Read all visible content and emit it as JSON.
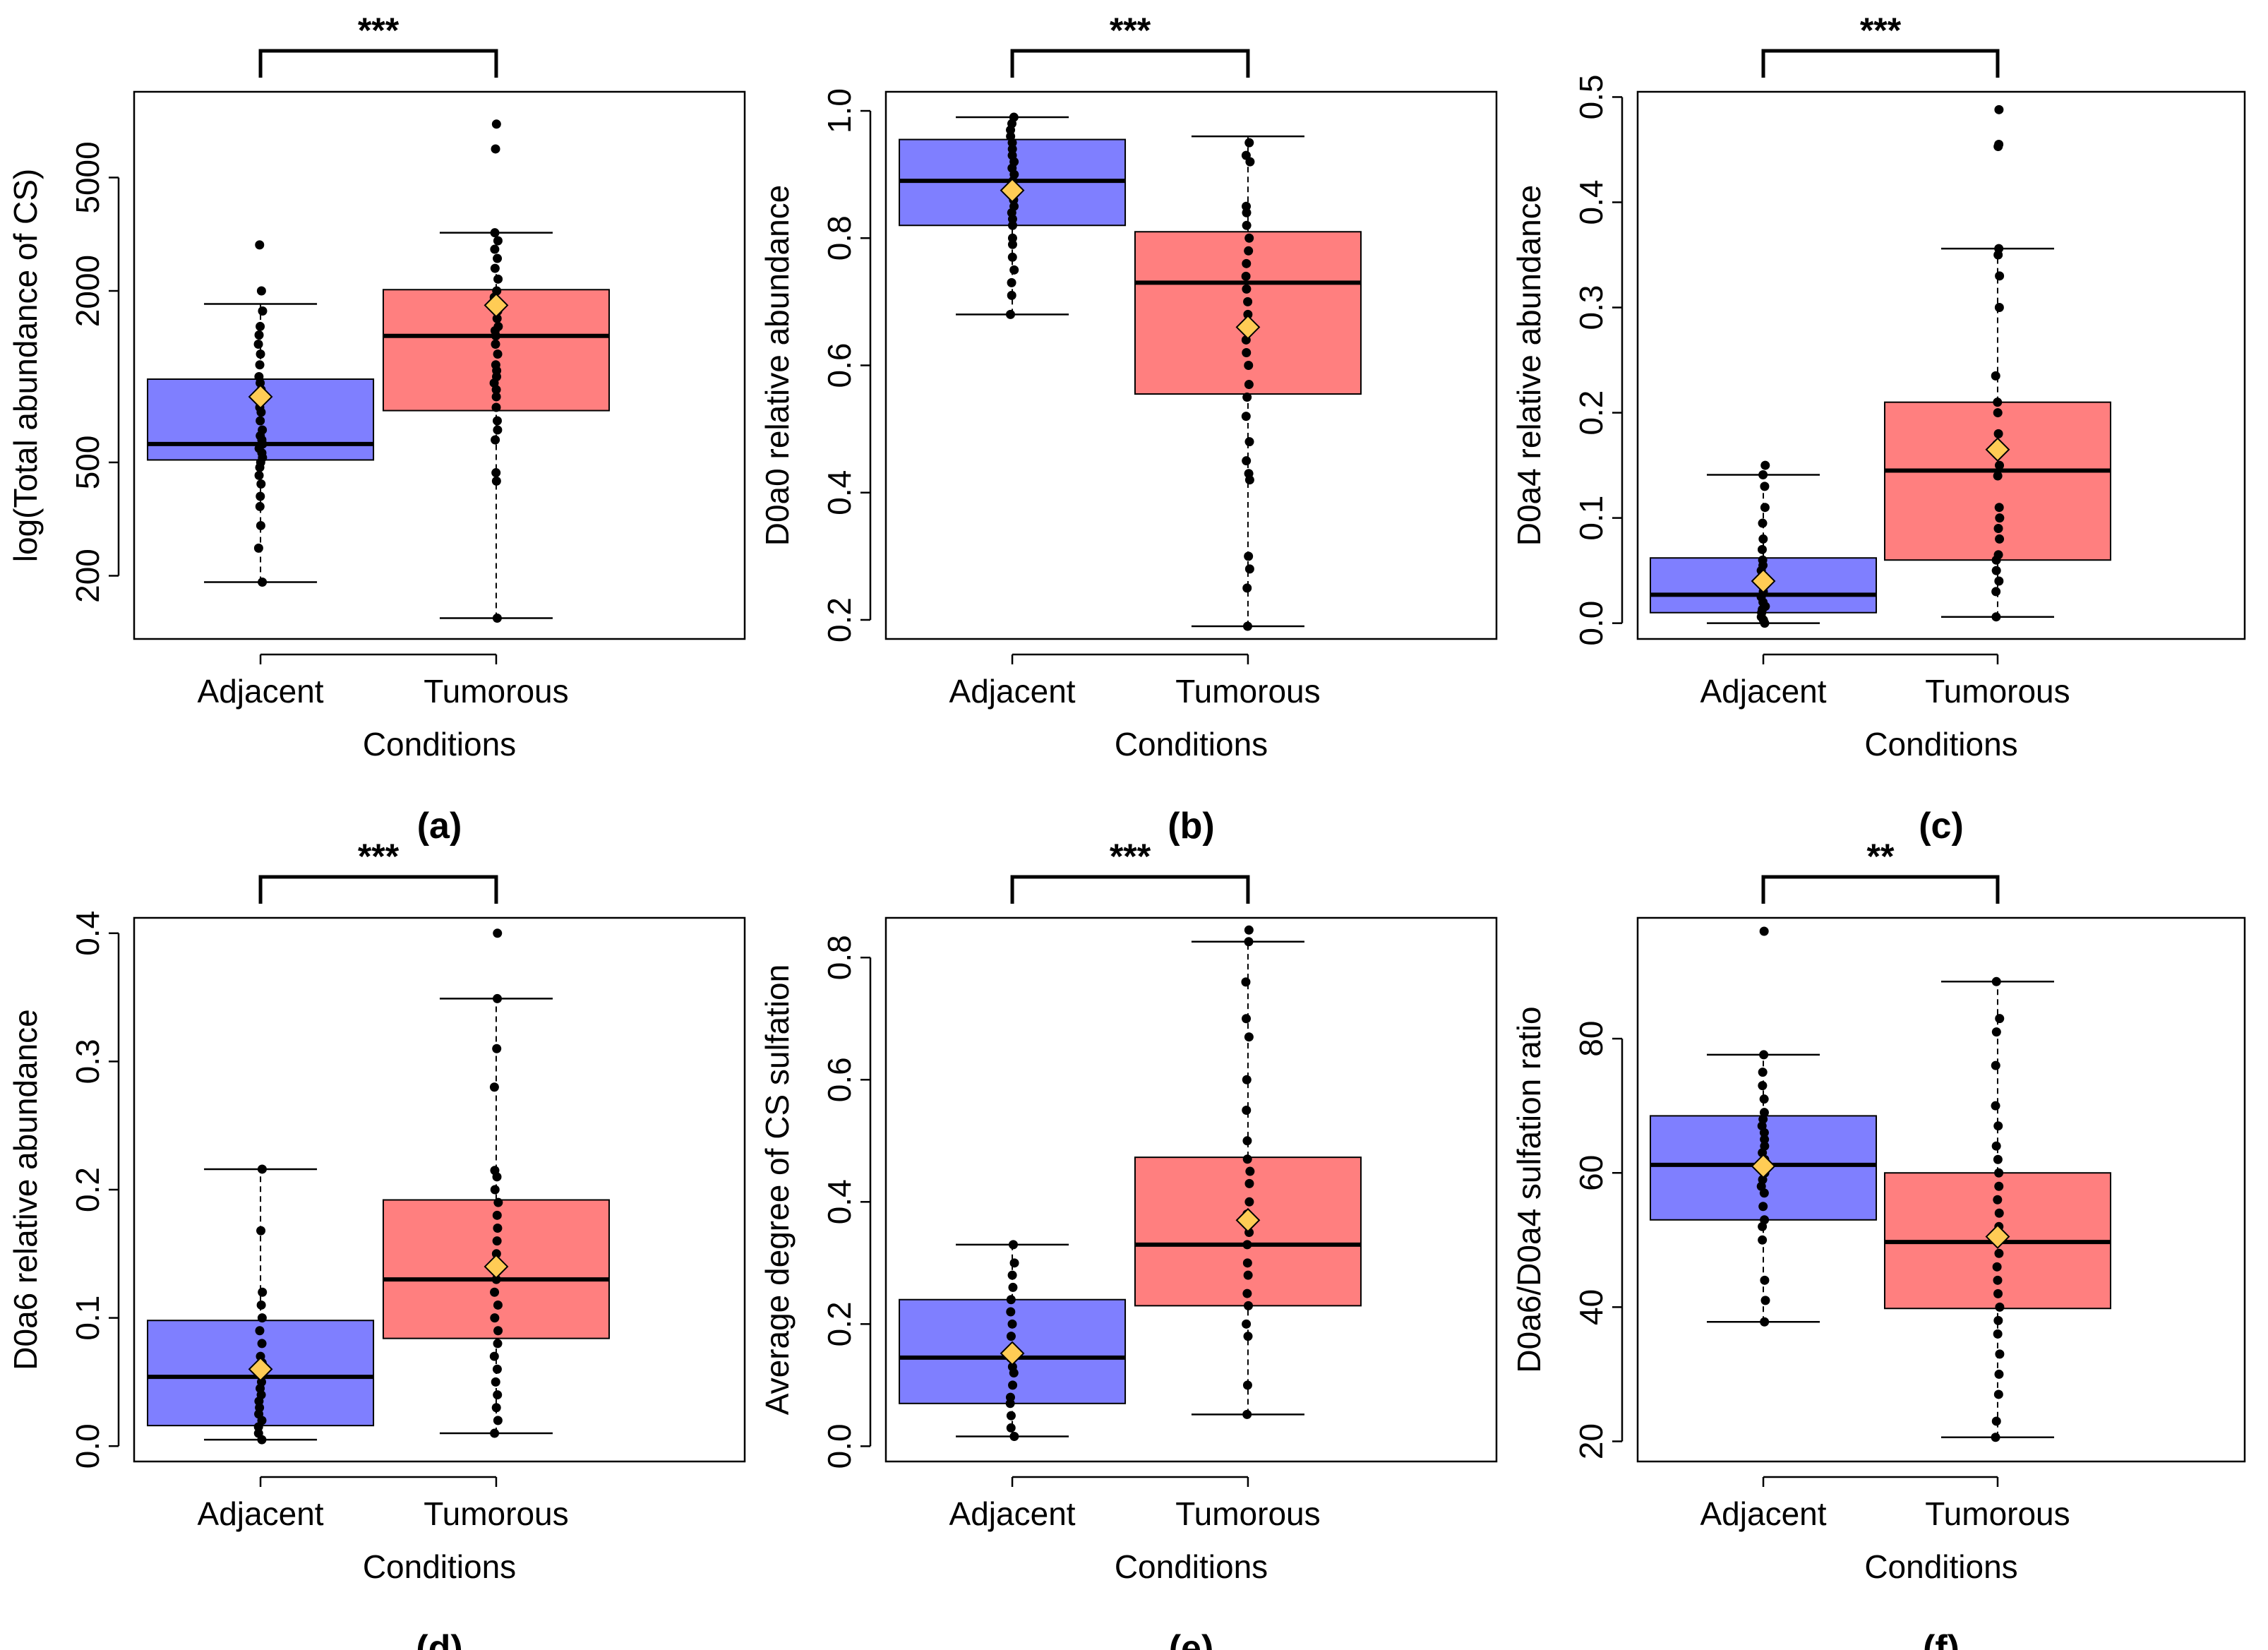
{
  "colors": {
    "adjacent": "#7f7fff",
    "tumorous": "#ff7f7f",
    "mean_marker": "#ffcc55",
    "points": "#000000"
  },
  "chart_data": [
    {
      "type": "box",
      "panel": "(a)",
      "xlabel": "Conditions",
      "ylabel": "log(Total abundance of CS)",
      "categories": [
        "Adjacent",
        "Tumorous"
      ],
      "significance": "***",
      "log_scale": true,
      "ylim": [
        120,
        10000
      ],
      "yticks": [
        200,
        500,
        2000,
        5000
      ],
      "boxes": [
        {
          "q1": 510,
          "median": 580,
          "q3": 980,
          "whisker_low": 190,
          "whisker_high": 1800,
          "mean": 850,
          "points": [
            190,
            250,
            300,
            350,
            380,
            420,
            450,
            480,
            500,
            520,
            540,
            560,
            580,
            600,
            620,
            650,
            700,
            750,
            780,
            820,
            860,
            900,
            950,
            1000,
            1100,
            1200,
            1300,
            1400,
            1500,
            1700,
            2000,
            2900
          ]
        },
        {
          "q1": 760,
          "median": 1390,
          "q3": 2020,
          "whisker_low": 142,
          "whisker_high": 3200,
          "mean": 1780,
          "points": [
            142,
            430,
            460,
            600,
            650,
            700,
            780,
            850,
            900,
            950,
            1000,
            1050,
            1100,
            1200,
            1300,
            1390,
            1450,
            1500,
            1600,
            1700,
            1800,
            1900,
            2000,
            2200,
            2400,
            2600,
            2800,
            3000,
            3200,
            6300,
            7700
          ]
        }
      ]
    },
    {
      "type": "box",
      "panel": "(b)",
      "xlabel": "Conditions",
      "ylabel": "D0a0 relative abundance",
      "categories": [
        "Adjacent",
        "Tumorous"
      ],
      "significance": "***",
      "log_scale": false,
      "ylim": [
        0.17,
        1.03
      ],
      "yticks": [
        0.2,
        0.4,
        0.6,
        0.8,
        1.0
      ],
      "ytick_labels": [
        "0.2",
        "0.4",
        "0.6",
        "0.8",
        "1.0"
      ],
      "boxes": [
        {
          "q1": 0.82,
          "median": 0.89,
          "q3": 0.955,
          "whisker_low": 0.68,
          "whisker_high": 0.99,
          "mean": 0.875,
          "points": [
            0.68,
            0.71,
            0.73,
            0.75,
            0.77,
            0.79,
            0.8,
            0.82,
            0.83,
            0.84,
            0.85,
            0.86,
            0.87,
            0.88,
            0.89,
            0.9,
            0.91,
            0.92,
            0.93,
            0.94,
            0.95,
            0.96,
            0.97,
            0.98,
            0.99
          ]
        },
        {
          "q1": 0.555,
          "median": 0.73,
          "q3": 0.81,
          "whisker_low": 0.19,
          "whisker_high": 0.96,
          "mean": 0.66,
          "points": [
            0.19,
            0.25,
            0.28,
            0.3,
            0.42,
            0.43,
            0.45,
            0.48,
            0.52,
            0.55,
            0.57,
            0.6,
            0.62,
            0.64,
            0.66,
            0.68,
            0.7,
            0.72,
            0.74,
            0.76,
            0.78,
            0.8,
            0.82,
            0.84,
            0.85,
            0.92,
            0.93,
            0.95
          ]
        }
      ]
    },
    {
      "type": "box",
      "panel": "(c)",
      "xlabel": "Conditions",
      "ylabel": "D0a4 relative abundance",
      "categories": [
        "Adjacent",
        "Tumorous"
      ],
      "significance": "***",
      "log_scale": false,
      "ylim": [
        -0.015,
        0.505
      ],
      "yticks": [
        0.0,
        0.1,
        0.2,
        0.3,
        0.4,
        0.5
      ],
      "ytick_labels": [
        "0.0",
        "0.1",
        "0.2",
        "0.3",
        "0.4",
        "0.5"
      ],
      "boxes": [
        {
          "q1": 0.01,
          "median": 0.027,
          "q3": 0.062,
          "whisker_low": 0.0,
          "whisker_high": 0.141,
          "mean": 0.04,
          "points": [
            0.0,
            0.003,
            0.006,
            0.01,
            0.013,
            0.016,
            0.02,
            0.025,
            0.03,
            0.035,
            0.04,
            0.045,
            0.05,
            0.055,
            0.06,
            0.07,
            0.08,
            0.095,
            0.11,
            0.13,
            0.141,
            0.15
          ]
        },
        {
          "q1": 0.06,
          "median": 0.145,
          "q3": 0.21,
          "whisker_low": 0.006,
          "whisker_high": 0.356,
          "mean": 0.165,
          "points": [
            0.006,
            0.03,
            0.04,
            0.05,
            0.06,
            0.065,
            0.08,
            0.09,
            0.1,
            0.11,
            0.14,
            0.15,
            0.16,
            0.17,
            0.18,
            0.2,
            0.21,
            0.235,
            0.3,
            0.33,
            0.35,
            0.356,
            0.453,
            0.455,
            0.488
          ]
        }
      ]
    },
    {
      "type": "box",
      "panel": "(d)",
      "xlabel": "Conditions",
      "ylabel": "D0a6 relative abundance",
      "categories": [
        "Adjacent",
        "Tumorous"
      ],
      "significance": "***",
      "log_scale": false,
      "ylim": [
        -0.012,
        0.412
      ],
      "yticks": [
        0.0,
        0.1,
        0.2,
        0.3,
        0.4
      ],
      "ytick_labels": [
        "0.0",
        "0.1",
        "0.2",
        "0.3",
        "0.4"
      ],
      "boxes": [
        {
          "q1": 0.016,
          "median": 0.054,
          "q3": 0.098,
          "whisker_low": 0.005,
          "whisker_high": 0.216,
          "mean": 0.06,
          "points": [
            0.005,
            0.01,
            0.015,
            0.02,
            0.025,
            0.03,
            0.035,
            0.04,
            0.045,
            0.05,
            0.055,
            0.06,
            0.065,
            0.07,
            0.08,
            0.09,
            0.1,
            0.11,
            0.12,
            0.168,
            0.216
          ]
        },
        {
          "q1": 0.084,
          "median": 0.13,
          "q3": 0.192,
          "whisker_low": 0.01,
          "whisker_high": 0.349,
          "mean": 0.14,
          "points": [
            0.01,
            0.02,
            0.03,
            0.04,
            0.05,
            0.06,
            0.07,
            0.08,
            0.09,
            0.1,
            0.11,
            0.12,
            0.13,
            0.14,
            0.15,
            0.16,
            0.17,
            0.18,
            0.19,
            0.2,
            0.21,
            0.215,
            0.28,
            0.31,
            0.349,
            0.4
          ]
        }
      ]
    },
    {
      "type": "box",
      "panel": "(e)",
      "xlabel": "Conditions",
      "ylabel": "Average degree of CS sulfation",
      "categories": [
        "Adjacent",
        "Tumorous"
      ],
      "significance": "***",
      "log_scale": false,
      "ylim": [
        -0.025,
        0.865
      ],
      "yticks": [
        0.0,
        0.2,
        0.4,
        0.6,
        0.8
      ],
      "ytick_labels": [
        "0.0",
        "0.2",
        "0.4",
        "0.6",
        "0.8"
      ],
      "boxes": [
        {
          "q1": 0.07,
          "median": 0.145,
          "q3": 0.24,
          "whisker_low": 0.016,
          "whisker_high": 0.33,
          "mean": 0.152,
          "points": [
            0.016,
            0.03,
            0.05,
            0.07,
            0.08,
            0.1,
            0.12,
            0.13,
            0.145,
            0.16,
            0.18,
            0.2,
            0.22,
            0.24,
            0.26,
            0.28,
            0.3,
            0.33
          ]
        },
        {
          "q1": 0.23,
          "median": 0.33,
          "q3": 0.473,
          "whisker_low": 0.052,
          "whisker_high": 0.826,
          "mean": 0.37,
          "points": [
            0.052,
            0.1,
            0.18,
            0.2,
            0.23,
            0.25,
            0.28,
            0.3,
            0.33,
            0.35,
            0.38,
            0.4,
            0.43,
            0.45,
            0.47,
            0.5,
            0.55,
            0.6,
            0.67,
            0.7,
            0.76,
            0.826,
            0.845
          ]
        }
      ]
    },
    {
      "type": "box",
      "panel": "(f)",
      "xlabel": "Conditions",
      "ylabel": "D0a6/D0a4 sulfation ratio",
      "categories": [
        "Adjacent",
        "Tumorous"
      ],
      "significance": "**",
      "log_scale": false,
      "ylim": [
        17,
        98
      ],
      "yticks": [
        20,
        40,
        60,
        80
      ],
      "ytick_labels": [
        "20",
        "40",
        "60",
        "80"
      ],
      "boxes": [
        {
          "q1": 53,
          "median": 61.2,
          "q3": 68.5,
          "whisker_low": 37.8,
          "whisker_high": 77.6,
          "mean": 61,
          "points": [
            37.8,
            41,
            44,
            50,
            52,
            53,
            55,
            57,
            58,
            59,
            60,
            61,
            62,
            63,
            64,
            65,
            66,
            67,
            68,
            69,
            71,
            73,
            75,
            77.6,
            96
          ]
        },
        {
          "q1": 39.8,
          "median": 49.7,
          "q3": 60,
          "whisker_low": 20.6,
          "whisker_high": 88.5,
          "mean": 50.5,
          "points": [
            20.6,
            23,
            27,
            30,
            33,
            36,
            38,
            40,
            42,
            44,
            46,
            48,
            50,
            52,
            54,
            56,
            58,
            60,
            62,
            64,
            67,
            70,
            76,
            81,
            83,
            88.5
          ]
        }
      ]
    }
  ]
}
